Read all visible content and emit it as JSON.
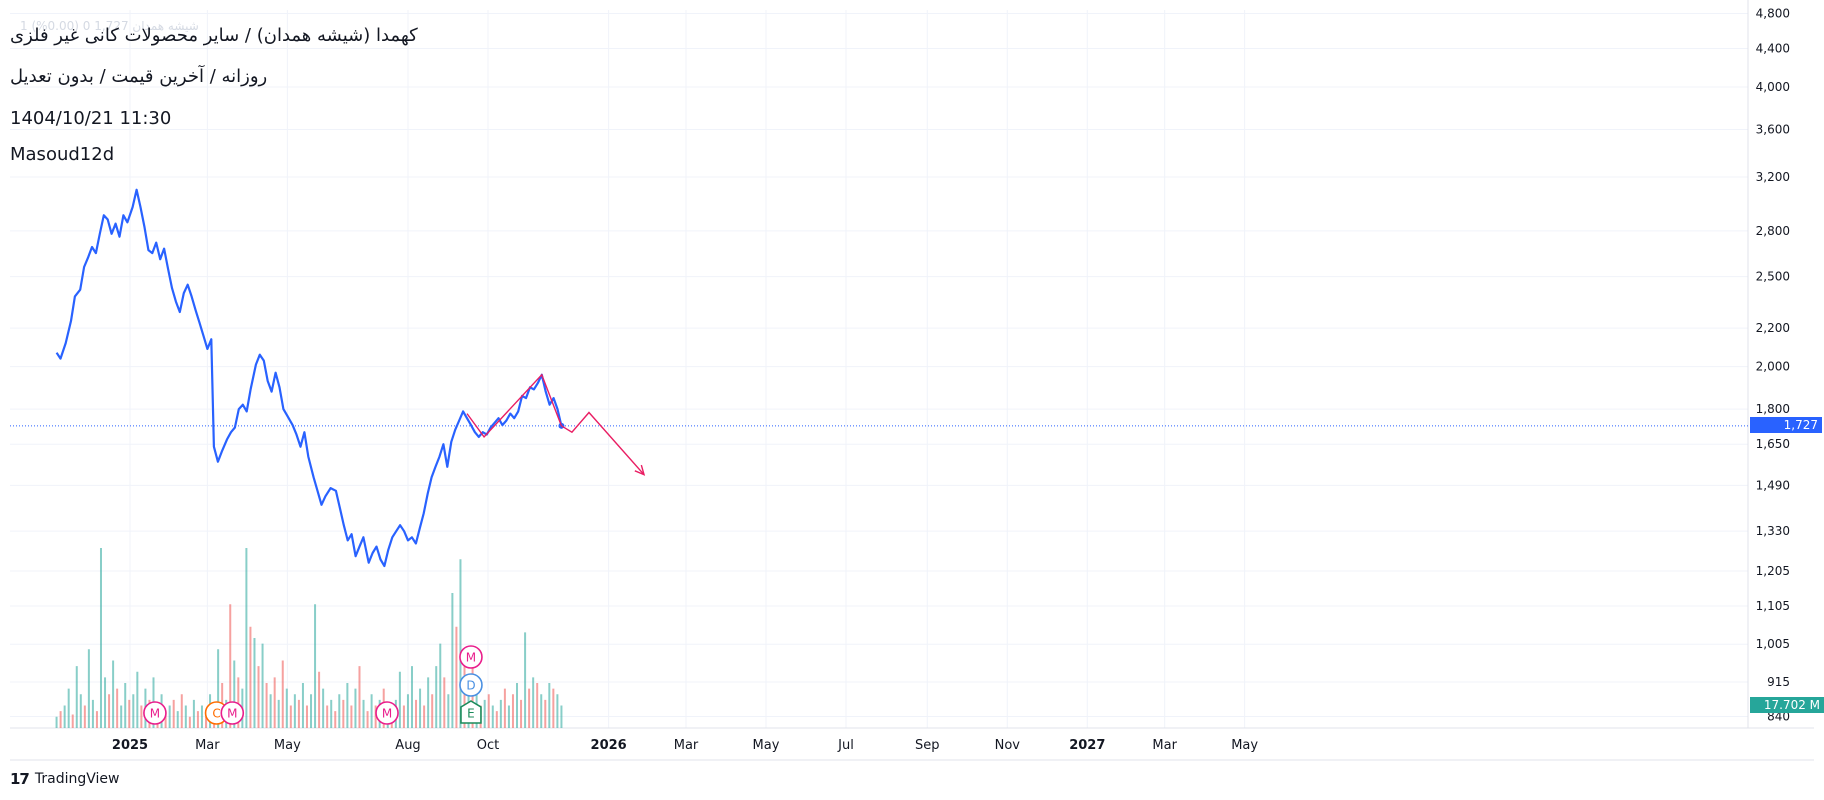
{
  "header": {
    "title": "کهمدا (شیشه همدان) / سایر محصولات کانی غیر فلزی",
    "subtitle": "روزانه / آخرین قیمت / بدون تعدیل",
    "timestamp": "1404/10/21 11:30",
    "author": "Masoud12d",
    "ghost_legend": "1  شیشه همدان  1,727  0 (0.00%)"
  },
  "footer": {
    "logo": "17",
    "brand": "TradingView"
  },
  "price_tags": {
    "last": "1,727",
    "volume": "17.702 M"
  },
  "colors": {
    "line": "#2962ff",
    "last_tag": "#2962ff",
    "vol_tag": "#26a69a",
    "vol_up": "#26a69a",
    "vol_down": "#ef5350",
    "drawing": "#e91e63",
    "event_m": "#e91e8c",
    "event_c": "#ff6d00",
    "event_d": "#4a90e2",
    "event_e": "#1b8a5a"
  },
  "chart_data": {
    "type": "line",
    "scale": "log",
    "ylim": [
      840,
      4800
    ],
    "y_ticks": [
      4800,
      4400,
      4000,
      3600,
      3200,
      2800,
      2500,
      2200,
      2000,
      1800,
      1650,
      1490,
      1330,
      1205,
      1105,
      1005,
      915,
      840
    ],
    "x_ticks": [
      {
        "date": "2025-01-01",
        "label": "2025",
        "bold": true
      },
      {
        "date": "2025-03-01",
        "label": "Mar"
      },
      {
        "date": "2025-05-01",
        "label": "May"
      },
      {
        "date": "2025-08-01",
        "label": "Aug"
      },
      {
        "date": "2025-10-01",
        "label": "Oct"
      },
      {
        "date": "2026-01-01",
        "label": "2026",
        "bold": true
      },
      {
        "date": "2026-03-01",
        "label": "Mar"
      },
      {
        "date": "2026-05-01",
        "label": "May"
      },
      {
        "date": "2026-07-01",
        "label": "Jul"
      },
      {
        "date": "2026-09-01",
        "label": "Sep"
      },
      {
        "date": "2026-11-01",
        "label": "Nov"
      },
      {
        "date": "2027-01-01",
        "label": "2027",
        "bold": true
      },
      {
        "date": "2027-03-01",
        "label": "Mar"
      },
      {
        "date": "2027-05-01",
        "label": "May"
      }
    ],
    "last_price": 1727,
    "last_volume": "17.702 M",
    "grid": true,
    "series": [
      {
        "points": [
          [
            "2024-11-06",
            2070
          ],
          [
            "2024-11-09",
            2040
          ],
          [
            "2024-11-13",
            2120
          ],
          [
            "2024-11-17",
            2240
          ],
          [
            "2024-11-20",
            2380
          ],
          [
            "2024-11-24",
            2420
          ],
          [
            "2024-11-27",
            2560
          ],
          [
            "2024-11-30",
            2620
          ],
          [
            "2024-12-03",
            2690
          ],
          [
            "2024-12-06",
            2650
          ],
          [
            "2024-12-09",
            2780
          ],
          [
            "2024-12-12",
            2910
          ],
          [
            "2024-12-15",
            2880
          ],
          [
            "2024-12-18",
            2780
          ],
          [
            "2024-12-21",
            2850
          ],
          [
            "2024-12-24",
            2760
          ],
          [
            "2024-12-27",
            2910
          ],
          [
            "2024-12-30",
            2860
          ],
          [
            "2025-01-03",
            2970
          ],
          [
            "2025-01-06",
            3100
          ],
          [
            "2025-01-09",
            2970
          ],
          [
            "2025-01-12",
            2830
          ],
          [
            "2025-01-15",
            2670
          ],
          [
            "2025-01-18",
            2650
          ],
          [
            "2025-01-21",
            2720
          ],
          [
            "2025-01-24",
            2610
          ],
          [
            "2025-01-27",
            2680
          ],
          [
            "2025-01-30",
            2550
          ],
          [
            "2025-02-02",
            2430
          ],
          [
            "2025-02-05",
            2350
          ],
          [
            "2025-02-08",
            2290
          ],
          [
            "2025-02-11",
            2400
          ],
          [
            "2025-02-14",
            2450
          ],
          [
            "2025-02-17",
            2380
          ],
          [
            "2025-02-20",
            2300
          ],
          [
            "2025-02-23",
            2230
          ],
          [
            "2025-02-26",
            2160
          ],
          [
            "2025-03-01",
            2090
          ],
          [
            "2025-03-04",
            2140
          ],
          [
            "2025-03-06",
            1640
          ],
          [
            "2025-03-09",
            1580
          ],
          [
            "2025-03-12",
            1620
          ],
          [
            "2025-03-16",
            1670
          ],
          [
            "2025-03-19",
            1700
          ],
          [
            "2025-03-22",
            1720
          ],
          [
            "2025-03-25",
            1800
          ],
          [
            "2025-03-28",
            1820
          ],
          [
            "2025-03-31",
            1790
          ],
          [
            "2025-04-03",
            1890
          ],
          [
            "2025-04-07",
            2010
          ],
          [
            "2025-04-10",
            2060
          ],
          [
            "2025-04-13",
            2030
          ],
          [
            "2025-04-16",
            1930
          ],
          [
            "2025-04-19",
            1880
          ],
          [
            "2025-04-22",
            1970
          ],
          [
            "2025-04-25",
            1900
          ],
          [
            "2025-04-28",
            1800
          ],
          [
            "2025-05-01",
            1770
          ],
          [
            "2025-05-05",
            1730
          ],
          [
            "2025-05-08",
            1690
          ],
          [
            "2025-05-11",
            1640
          ],
          [
            "2025-05-14",
            1700
          ],
          [
            "2025-05-17",
            1600
          ],
          [
            "2025-05-21",
            1520
          ],
          [
            "2025-05-24",
            1470
          ],
          [
            "2025-05-27",
            1420
          ],
          [
            "2025-05-30",
            1450
          ],
          [
            "2025-06-03",
            1480
          ],
          [
            "2025-06-07",
            1470
          ],
          [
            "2025-06-10",
            1410
          ],
          [
            "2025-06-13",
            1350
          ],
          [
            "2025-06-16",
            1300
          ],
          [
            "2025-06-19",
            1320
          ],
          [
            "2025-06-22",
            1250
          ],
          [
            "2025-06-25",
            1280
          ],
          [
            "2025-06-28",
            1310
          ],
          [
            "2025-07-02",
            1230
          ],
          [
            "2025-07-05",
            1260
          ],
          [
            "2025-07-08",
            1280
          ],
          [
            "2025-07-11",
            1240
          ],
          [
            "2025-07-14",
            1220
          ],
          [
            "2025-07-17",
            1270
          ],
          [
            "2025-07-20",
            1310
          ],
          [
            "2025-07-23",
            1330
          ],
          [
            "2025-07-26",
            1350
          ],
          [
            "2025-07-29",
            1330
          ],
          [
            "2025-08-01",
            1300
          ],
          [
            "2025-08-04",
            1310
          ],
          [
            "2025-08-07",
            1290
          ],
          [
            "2025-08-10",
            1340
          ],
          [
            "2025-08-13",
            1390
          ],
          [
            "2025-08-16",
            1460
          ],
          [
            "2025-08-19",
            1520
          ],
          [
            "2025-08-22",
            1560
          ],
          [
            "2025-08-25",
            1600
          ],
          [
            "2025-08-28",
            1650
          ],
          [
            "2025-08-31",
            1560
          ],
          [
            "2025-09-03",
            1660
          ],
          [
            "2025-09-06",
            1710
          ],
          [
            "2025-09-09",
            1750
          ],
          [
            "2025-09-12",
            1790
          ],
          [
            "2025-09-15",
            1760
          ],
          [
            "2025-09-18",
            1730
          ],
          [
            "2025-09-21",
            1700
          ],
          [
            "2025-09-24",
            1680
          ],
          [
            "2025-09-27",
            1700
          ],
          [
            "2025-09-30",
            1690
          ],
          [
            "2025-10-03",
            1720
          ],
          [
            "2025-10-06",
            1740
          ],
          [
            "2025-10-09",
            1760
          ],
          [
            "2025-10-12",
            1730
          ],
          [
            "2025-10-15",
            1750
          ],
          [
            "2025-10-18",
            1780
          ],
          [
            "2025-10-21",
            1760
          ],
          [
            "2025-10-24",
            1790
          ],
          [
            "2025-10-27",
            1860
          ],
          [
            "2025-10-30",
            1850
          ],
          [
            "2025-11-02",
            1900
          ],
          [
            "2025-11-05",
            1890
          ],
          [
            "2025-11-08",
            1920
          ],
          [
            "2025-11-11",
            1960
          ],
          [
            "2025-11-14",
            1880
          ],
          [
            "2025-11-17",
            1820
          ],
          [
            "2025-11-20",
            1850
          ],
          [
            "2025-11-23",
            1800
          ],
          [
            "2025-11-26",
            1727
          ]
        ]
      }
    ],
    "volume": [
      [
        0.1,
        1
      ],
      [
        0.15,
        0
      ],
      [
        0.2,
        1
      ],
      [
        0.35,
        1
      ],
      [
        0.12,
        0
      ],
      [
        0.55,
        1
      ],
      [
        0.3,
        1
      ],
      [
        0.2,
        0
      ],
      [
        0.7,
        1
      ],
      [
        0.25,
        1
      ],
      [
        0.15,
        0
      ],
      [
        1.6,
        1
      ],
      [
        0.45,
        1
      ],
      [
        0.3,
        0
      ],
      [
        0.6,
        1
      ],
      [
        0.35,
        0
      ],
      [
        0.2,
        1
      ],
      [
        0.4,
        1
      ],
      [
        0.25,
        0
      ],
      [
        0.3,
        1
      ],
      [
        0.5,
        1
      ],
      [
        0.2,
        0
      ],
      [
        0.35,
        1
      ],
      [
        0.25,
        0
      ],
      [
        0.45,
        1
      ],
      [
        0.2,
        0
      ],
      [
        0.3,
        1
      ],
      [
        0.15,
        0
      ],
      [
        0.2,
        1
      ],
      [
        0.25,
        0
      ],
      [
        0.15,
        1
      ],
      [
        0.3,
        0
      ],
      [
        0.2,
        1
      ],
      [
        0.1,
        0
      ],
      [
        0.25,
        1
      ],
      [
        0.15,
        0
      ],
      [
        0.2,
        1
      ],
      [
        0.1,
        0
      ],
      [
        0.3,
        1
      ],
      [
        0.2,
        0
      ],
      [
        0.7,
        1
      ],
      [
        0.4,
        0
      ],
      [
        0.25,
        1
      ],
      [
        1.1,
        0
      ],
      [
        0.6,
        1
      ],
      [
        0.45,
        0
      ],
      [
        0.35,
        1
      ],
      [
        1.6,
        1
      ],
      [
        0.9,
        0
      ],
      [
        0.8,
        1
      ],
      [
        0.55,
        0
      ],
      [
        0.75,
        1
      ],
      [
        0.4,
        0
      ],
      [
        0.3,
        1
      ],
      [
        0.45,
        0
      ],
      [
        0.25,
        1
      ],
      [
        0.6,
        0
      ],
      [
        0.35,
        1
      ],
      [
        0.2,
        0
      ],
      [
        0.3,
        1
      ],
      [
        0.25,
        0
      ],
      [
        0.4,
        1
      ],
      [
        0.2,
        0
      ],
      [
        0.3,
        1
      ],
      [
        1.1,
        1
      ],
      [
        0.5,
        0
      ],
      [
        0.35,
        1
      ],
      [
        0.2,
        0
      ],
      [
        0.25,
        1
      ],
      [
        0.15,
        0
      ],
      [
        0.3,
        1
      ],
      [
        0.25,
        0
      ],
      [
        0.4,
        1
      ],
      [
        0.2,
        0
      ],
      [
        0.35,
        1
      ],
      [
        0.55,
        0
      ],
      [
        0.25,
        1
      ],
      [
        0.15,
        0
      ],
      [
        0.3,
        1
      ],
      [
        0.2,
        0
      ],
      [
        0.25,
        1
      ],
      [
        0.35,
        0
      ],
      [
        0.2,
        1
      ],
      [
        0.15,
        0
      ],
      [
        0.25,
        1
      ],
      [
        0.5,
        1
      ],
      [
        0.2,
        0
      ],
      [
        0.3,
        1
      ],
      [
        0.55,
        1
      ],
      [
        0.25,
        0
      ],
      [
        0.35,
        1
      ],
      [
        0.2,
        0
      ],
      [
        0.45,
        1
      ],
      [
        0.3,
        0
      ],
      [
        0.55,
        1
      ],
      [
        0.75,
        1
      ],
      [
        0.45,
        0
      ],
      [
        0.3,
        1
      ],
      [
        1.2,
        1
      ],
      [
        0.9,
        0
      ],
      [
        1.5,
        1
      ],
      [
        0.6,
        0
      ],
      [
        0.4,
        1
      ],
      [
        0.55,
        0
      ],
      [
        0.3,
        1
      ],
      [
        0.2,
        0
      ],
      [
        0.25,
        1
      ],
      [
        0.3,
        0
      ],
      [
        0.2,
        1
      ],
      [
        0.15,
        0
      ],
      [
        0.25,
        1
      ],
      [
        0.35,
        0
      ],
      [
        0.2,
        1
      ],
      [
        0.3,
        0
      ],
      [
        0.4,
        1
      ],
      [
        0.25,
        0
      ],
      [
        0.85,
        1
      ],
      [
        0.35,
        0
      ],
      [
        0.45,
        1
      ],
      [
        0.4,
        0
      ],
      [
        0.3,
        1
      ],
      [
        0.25,
        0
      ],
      [
        0.4,
        1
      ],
      [
        0.35,
        0
      ],
      [
        0.3,
        1
      ],
      [
        0.2,
        1
      ]
    ],
    "drawings": [
      {
        "type": "polyline",
        "points": [
          [
            "2025-09-15",
            1780
          ],
          [
            "2025-09-28",
            1680
          ],
          [
            "2025-11-11",
            1960
          ],
          [
            "2025-11-26",
            1727
          ]
        ]
      },
      {
        "type": "arrow",
        "points": [
          [
            "2025-11-26",
            1727
          ],
          [
            "2025-12-04",
            1700
          ],
          [
            "2025-12-17",
            1785
          ],
          [
            "2026-01-28",
            1530
          ]
        ]
      }
    ],
    "events": [
      {
        "date": "2025-01-20",
        "labels": [
          "M"
        ]
      },
      {
        "date": "2025-03-08",
        "labels": [
          "C"
        ]
      },
      {
        "date": "2025-03-20",
        "labels": [
          "M"
        ]
      },
      {
        "date": "2025-07-16",
        "labels": [
          "M"
        ]
      },
      {
        "date": "2025-09-18",
        "labels": [
          "E",
          "D",
          "M"
        ]
      }
    ]
  }
}
